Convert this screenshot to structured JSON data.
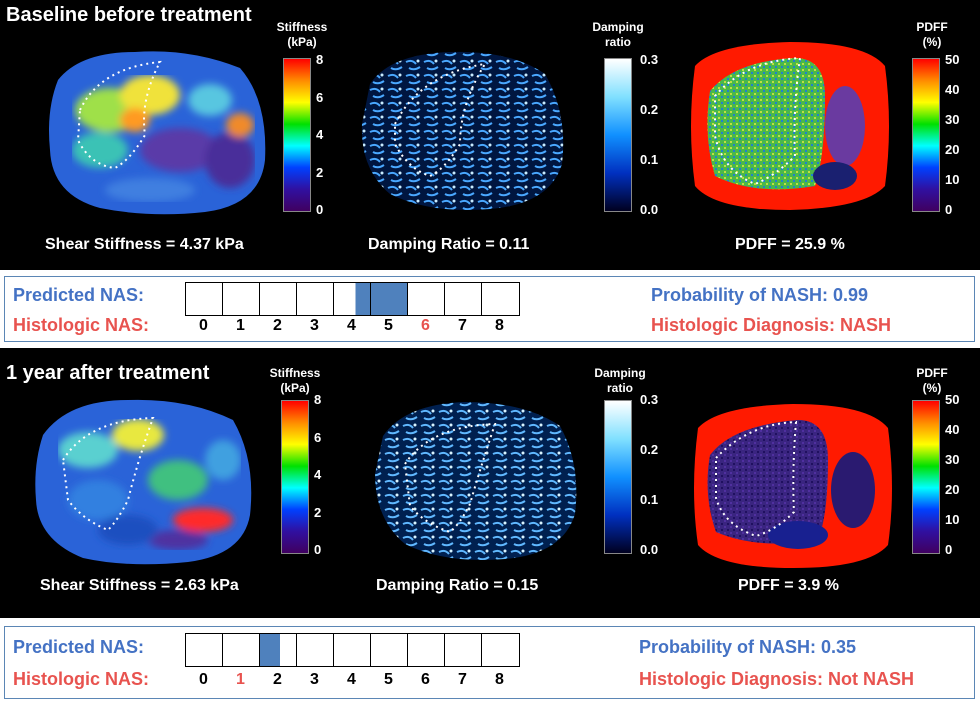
{
  "colors": {
    "predicted_fill": "#4f81bd",
    "label_blue": "#4472c4",
    "label_red": "#e8534f"
  },
  "baseline": {
    "title": "Baseline before treatment",
    "stiffness": {
      "colorbar_title": [
        "Stiffness",
        "(kPa)"
      ],
      "ticks": [
        "8",
        "6",
        "4",
        "2",
        "0"
      ],
      "metric": "Shear Stiffness = 4.37 kPa"
    },
    "damping": {
      "colorbar_title": [
        "Damping",
        "ratio"
      ],
      "ticks": [
        "0.3",
        "0.2",
        "0.1",
        "0.0"
      ],
      "metric": "Damping Ratio = 0.11"
    },
    "pdff": {
      "colorbar_title": [
        "PDFF",
        "(%)"
      ],
      "ticks": [
        "50",
        "40",
        "30",
        "20",
        "10",
        "0"
      ],
      "metric": "PDFF = 25.9 %"
    },
    "nas": {
      "predicted_label": "Predicted NAS:",
      "histologic_label": "Histologic NAS:",
      "scale": [
        "0",
        "1",
        "2",
        "3",
        "4",
        "5",
        "6",
        "7",
        "8"
      ],
      "predicted_range": [
        4.6,
        6.0
      ],
      "histologic_value": "6",
      "probability": "Probability of NASH: 0.99",
      "diagnosis": "Histologic Diagnosis: NASH"
    }
  },
  "followup": {
    "title": "1 year after treatment",
    "stiffness": {
      "colorbar_title": [
        "Stiffness",
        "(kPa)"
      ],
      "ticks": [
        "8",
        "6",
        "4",
        "2",
        "0"
      ],
      "metric": "Shear Stiffness = 2.63 kPa"
    },
    "damping": {
      "colorbar_title": [
        "Damping",
        "ratio"
      ],
      "ticks": [
        "0.3",
        "0.2",
        "0.1",
        "0.0"
      ],
      "metric": "Damping Ratio = 0.15"
    },
    "pdff": {
      "colorbar_title": [
        "PDFF",
        "(%)"
      ],
      "ticks": [
        "50",
        "40",
        "30",
        "20",
        "10",
        "0"
      ],
      "metric": "PDFF = 3.9 %"
    },
    "nas": {
      "predicted_label": "Predicted NAS:",
      "histologic_label": "Histologic NAS:",
      "scale": [
        "0",
        "1",
        "2",
        "3",
        "4",
        "5",
        "6",
        "7",
        "8"
      ],
      "predicted_range": [
        2.0,
        2.55
      ],
      "histologic_value": "1",
      "probability": "Probability of NASH: 0.35",
      "diagnosis": "Histologic Diagnosis: Not NASH"
    }
  }
}
